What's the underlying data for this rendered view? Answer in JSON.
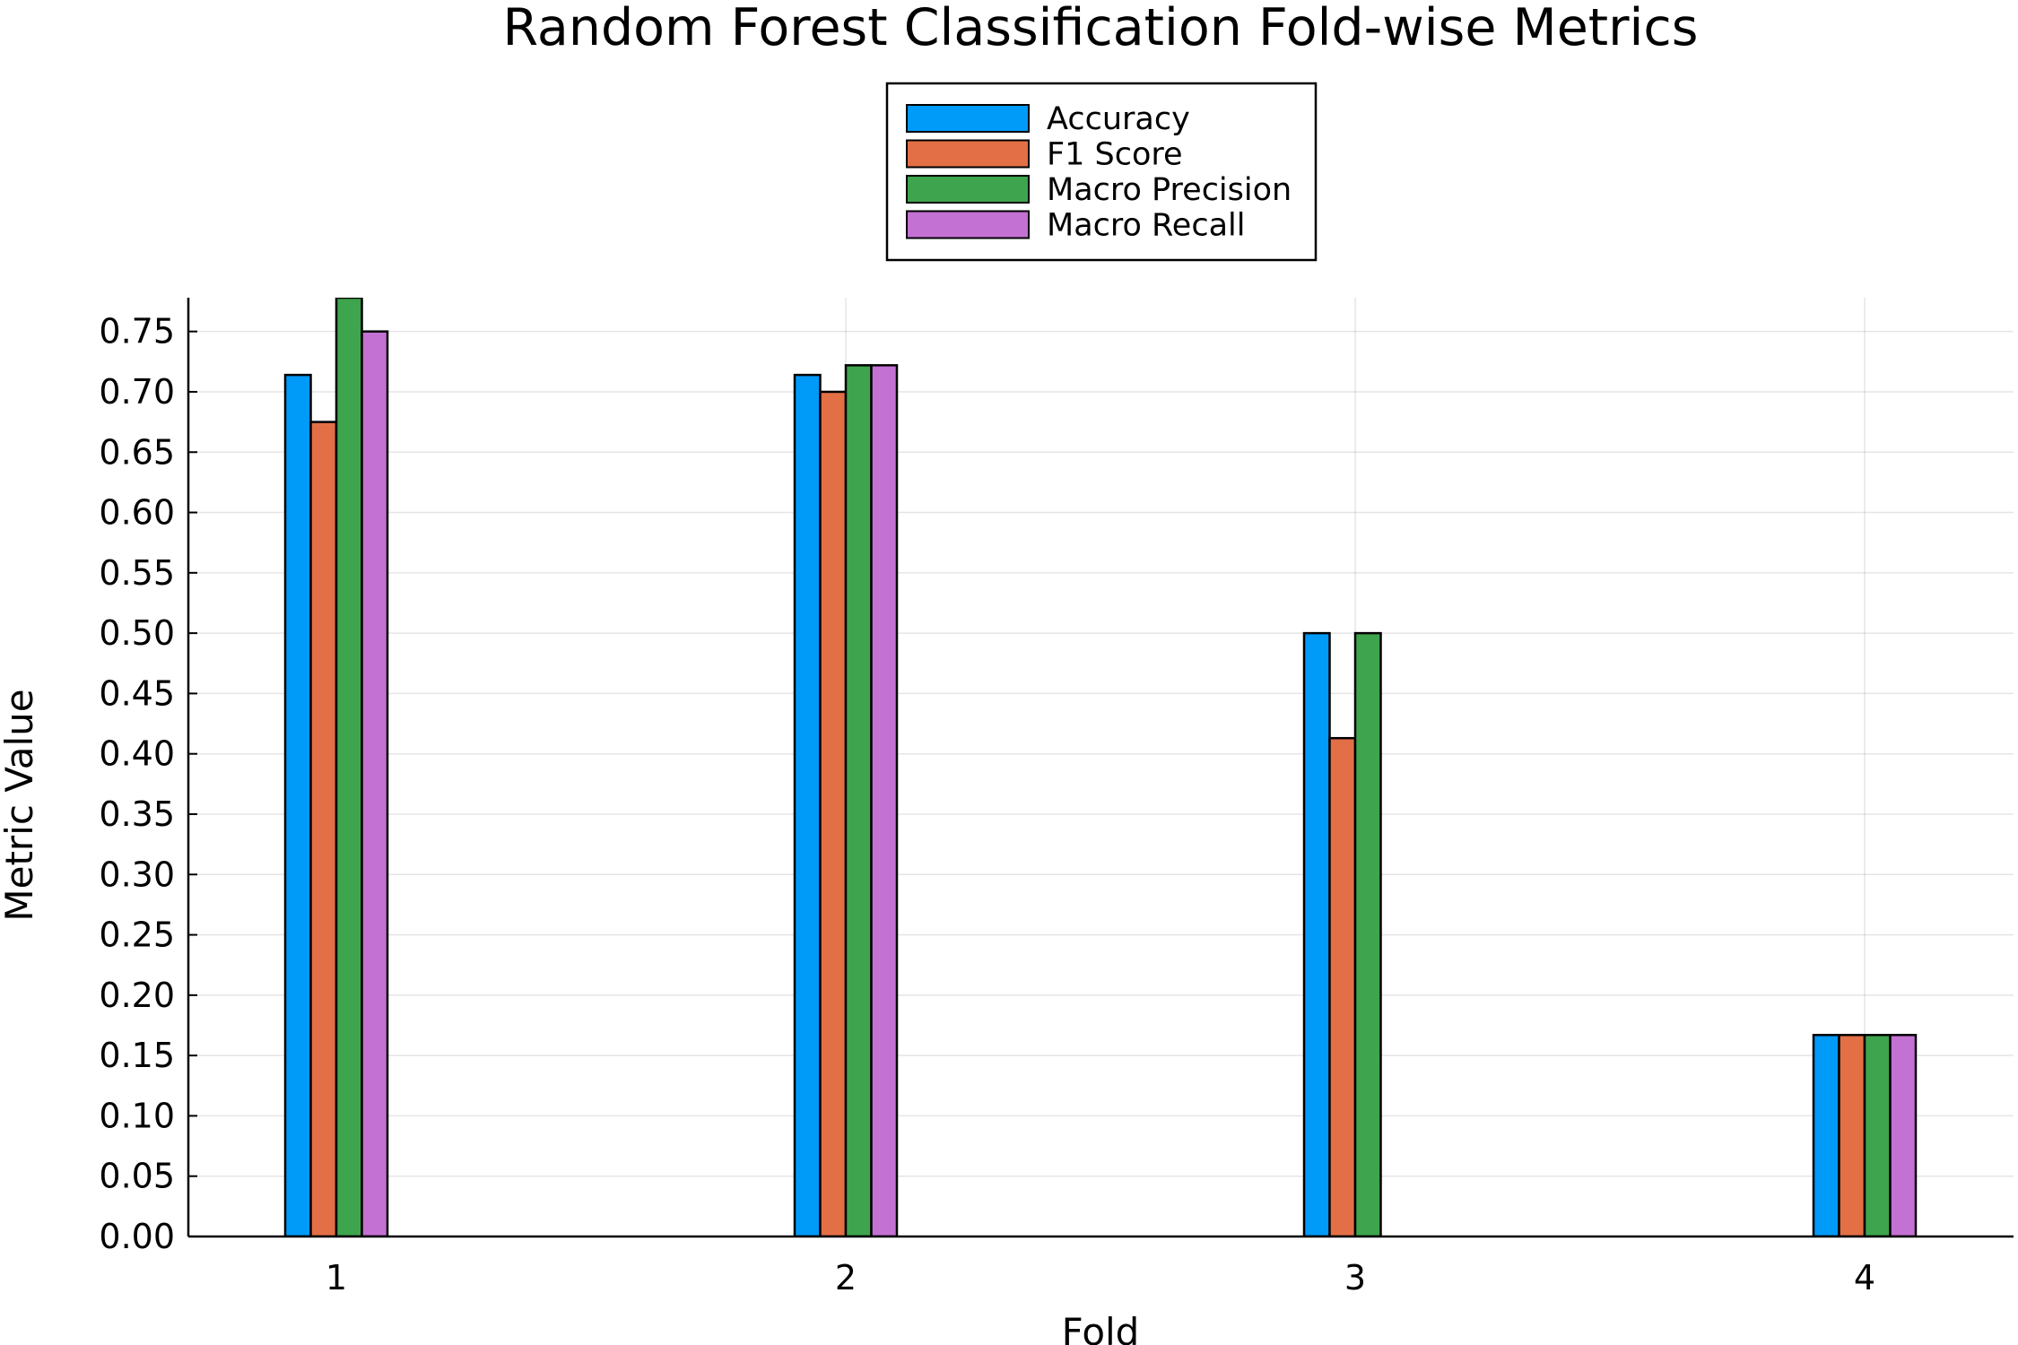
{
  "chart_data": {
    "type": "bar",
    "title": "Random Forest Classification Fold-wise Metrics",
    "xlabel": "Fold",
    "ylabel": "Metric Value",
    "categories": [
      "1",
      "2",
      "3",
      "4"
    ],
    "series": [
      {
        "name": "Accuracy",
        "color": "#009AF9",
        "values": [
          0.714,
          0.714,
          0.5,
          0.167
        ]
      },
      {
        "name": "F1 Score",
        "color": "#E26F46",
        "values": [
          0.675,
          0.7,
          0.413,
          0.167
        ]
      },
      {
        "name": "Macro Precision",
        "color": "#3EA44E",
        "values": [
          0.778,
          0.722,
          0.5,
          0.167
        ]
      },
      {
        "name": "Macro Recall",
        "color": "#C371D2",
        "values": [
          0.75,
          0.722,
          0.0,
          0.167
        ]
      }
    ],
    "ylim": [
      0,
      0.778
    ],
    "yticks": [
      "0.00",
      "0.05",
      "0.10",
      "0.15",
      "0.20",
      "0.25",
      "0.30",
      "0.35",
      "0.40",
      "0.45",
      "0.50",
      "0.55",
      "0.60",
      "0.65",
      "0.70",
      "0.75"
    ],
    "grid": true,
    "legend_position": "top-center"
  }
}
